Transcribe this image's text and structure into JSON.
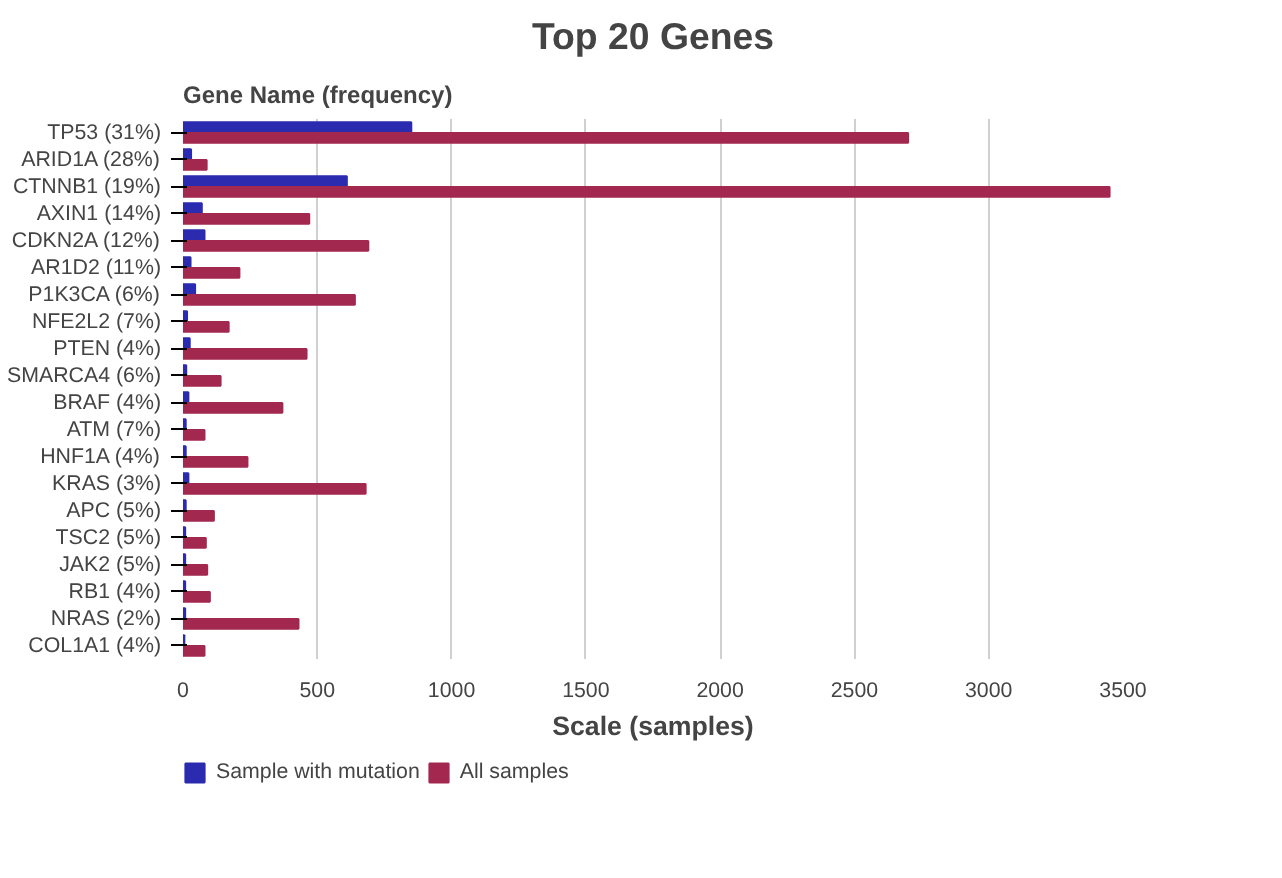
{
  "chart_data": {
    "type": "bar",
    "orientation": "horizontal",
    "title": "Top 20 Genes",
    "ylabel": "Gene Name (frequency)",
    "xlabel": "Scale (samples)",
    "categories": [
      "TP53 (31%)",
      "ARID1A (28%)",
      "CTNNB1 (19%)",
      "AXIN1 (14%)",
      "CDKN2A (12%)",
      "AR1D2 (11%)",
      "P1K3CA (6%)",
      "NFE2L2 (7%)",
      "PTEN (4%)",
      "SMARCA4 (6%)",
      "BRAF (4%)",
      "ATM (7%)",
      "HNF1A (4%)",
      "KRAS (3%)",
      "APC (5%)",
      "TSC2 (5%)",
      "JAK2 (5%)",
      "RB1 (4%)",
      "NRAS (2%)",
      "COL1A1 (4%)"
    ],
    "series": [
      {
        "name": "Sample with mutation",
        "color": "#2b2bb0",
        "values": [
          850,
          30,
          610,
          70,
          80,
          28,
          45,
          15,
          25,
          12,
          20,
          10,
          10,
          20,
          10,
          8,
          8,
          8,
          8,
          5
        ]
      },
      {
        "name": "All samples",
        "color": "#a3284f",
        "values": [
          2700,
          88,
          3450,
          470,
          690,
          210,
          640,
          170,
          460,
          140,
          370,
          80,
          240,
          680,
          115,
          85,
          90,
          100,
          430,
          80
        ]
      }
    ],
    "xlim": [
      0,
      3500
    ],
    "xticks": [
      0,
      500,
      1000,
      1500,
      2000,
      2500,
      3000,
      3500
    ],
    "grid": "x",
    "legend": "bottom left"
  }
}
